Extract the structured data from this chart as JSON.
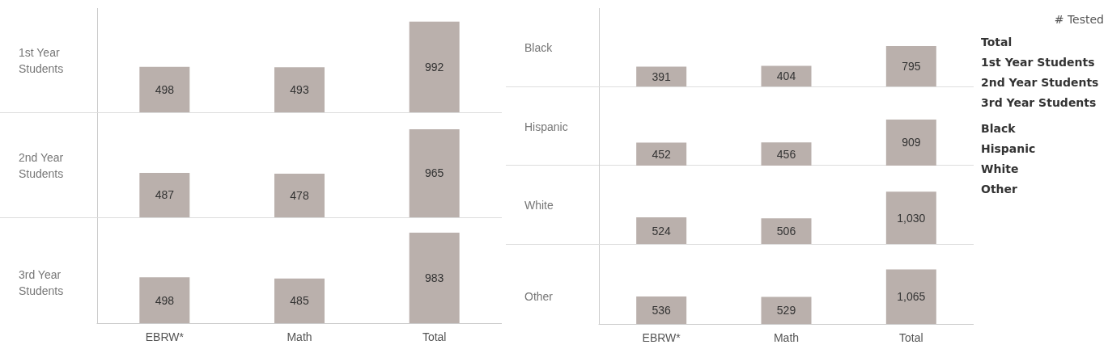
{
  "chart_data": [
    {
      "type": "bar",
      "title": "1st Year Students",
      "categories": [
        null,
        null,
        null
      ],
      "values": [
        498,
        493,
        992
      ],
      "value_labels": [
        "498",
        "493",
        "992"
      ],
      "color": "#bab0ac",
      "tick_labels": false
    },
    {
      "type": "bar",
      "title": "2nd Year Students",
      "categories": [
        null,
        null,
        null
      ],
      "values": [
        487,
        478,
        965
      ],
      "value_labels": [
        "487",
        "478",
        "965"
      ],
      "color": "#bab0ac",
      "tick_labels": false
    },
    {
      "type": "bar",
      "title": "3rd Year Students",
      "categories": [
        "EBRW*",
        "Math",
        "Total"
      ],
      "values": [
        498,
        485,
        983
      ],
      "value_labels": [
        "498",
        "485",
        "983"
      ],
      "color": "#bab0ac",
      "tick_labels": "x"
    },
    {
      "type": "bar",
      "title": "Black",
      "categories": [
        null,
        null,
        null
      ],
      "values": [
        391,
        404,
        795
      ],
      "value_labels": [
        "391",
        "404",
        "795"
      ],
      "color": "#bab0ac",
      "tick_labels": false
    },
    {
      "type": "bar",
      "title": "Hispanic",
      "categories": [
        null,
        null,
        null
      ],
      "values": [
        452,
        456,
        909
      ],
      "value_labels": [
        "452",
        "456",
        "909"
      ],
      "color": "#bab0ac",
      "tick_labels": false
    },
    {
      "type": "bar",
      "title": "White",
      "categories": [
        null,
        null,
        null
      ],
      "values": [
        524,
        506,
        1030
      ],
      "value_labels": [
        "524",
        "506",
        "1,030"
      ],
      "color": "#bab0ac",
      "tick_labels": false
    },
    {
      "type": "bar",
      "title": "Other",
      "categories": [
        "EBRW*",
        "Math",
        "Total"
      ],
      "values": [
        536,
        529,
        1065
      ],
      "value_labels": [
        "536",
        "529",
        "1,065"
      ],
      "color": "#bab0ac",
      "tick_labels": "x"
    },
    {
      "type": "other",
      "title": "# Tested",
      "annotations": [
        "Total",
        "1st Year Students",
        "2nd Year Students",
        "3rd Year Students",
        "Black",
        "Hispanic",
        "White",
        "Other"
      ]
    }
  ]
}
